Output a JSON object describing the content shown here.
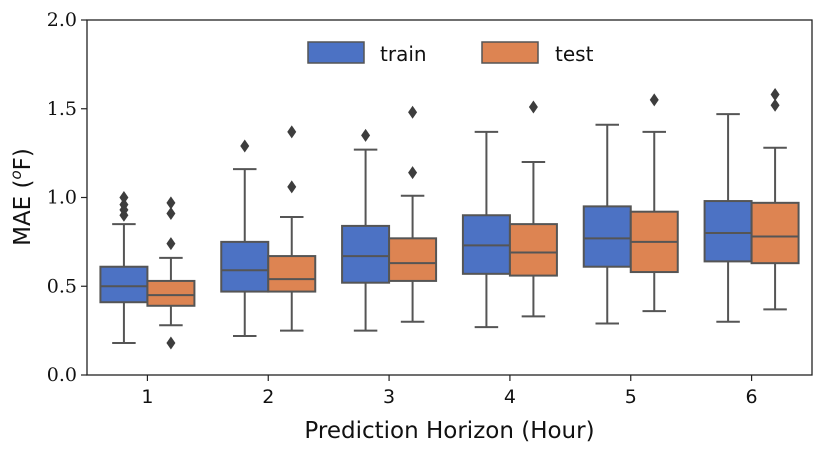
{
  "chart_data": {
    "type": "box",
    "title": "",
    "xlabel": "Prediction Horizon (Hour)",
    "ylabel": "MAE (°F)",
    "ylabel_main": "MAE (",
    "ylabel_sup": "o",
    "ylabel_unit": "F)",
    "ylim": [
      0,
      2.0
    ],
    "yticks": [
      "0.0",
      "0.5",
      "1.0",
      "1.5",
      "2.0"
    ],
    "categories": [
      "1",
      "2",
      "3",
      "4",
      "5",
      "6"
    ],
    "legend_position": "top-center",
    "series": [
      {
        "name": "train",
        "color": "#4c72c4",
        "boxes": [
          {
            "whisker_low": 0.18,
            "q1": 0.41,
            "median": 0.5,
            "q3": 0.61,
            "whisker_high": 0.85,
            "outliers": [
              0.9,
              0.93,
              0.96,
              1.0
            ]
          },
          {
            "whisker_low": 0.22,
            "q1": 0.47,
            "median": 0.59,
            "q3": 0.75,
            "whisker_high": 1.16,
            "outliers": [
              1.29
            ]
          },
          {
            "whisker_low": 0.25,
            "q1": 0.52,
            "median": 0.67,
            "q3": 0.84,
            "whisker_high": 1.27,
            "outliers": [
              1.35
            ]
          },
          {
            "whisker_low": 0.27,
            "q1": 0.57,
            "median": 0.73,
            "q3": 0.9,
            "whisker_high": 1.37,
            "outliers": []
          },
          {
            "whisker_low": 0.29,
            "q1": 0.61,
            "median": 0.77,
            "q3": 0.95,
            "whisker_high": 1.41,
            "outliers": []
          },
          {
            "whisker_low": 0.3,
            "q1": 0.64,
            "median": 0.8,
            "q3": 0.98,
            "whisker_high": 1.47,
            "outliers": []
          }
        ]
      },
      {
        "name": "test",
        "color": "#dd8452",
        "boxes": [
          {
            "whisker_low": 0.28,
            "q1": 0.39,
            "median": 0.45,
            "q3": 0.53,
            "whisker_high": 0.66,
            "outliers": [
              0.18,
              0.74,
              0.91,
              0.97
            ]
          },
          {
            "whisker_low": 0.25,
            "q1": 0.47,
            "median": 0.54,
            "q3": 0.67,
            "whisker_high": 0.89,
            "outliers": [
              1.06,
              1.37
            ]
          },
          {
            "whisker_low": 0.3,
            "q1": 0.53,
            "median": 0.63,
            "q3": 0.77,
            "whisker_high": 1.01,
            "outliers": [
              1.14,
              1.48
            ]
          },
          {
            "whisker_low": 0.33,
            "q1": 0.56,
            "median": 0.69,
            "q3": 0.85,
            "whisker_high": 1.2,
            "outliers": [
              1.51
            ]
          },
          {
            "whisker_low": 0.36,
            "q1": 0.58,
            "median": 0.75,
            "q3": 0.92,
            "whisker_high": 1.37,
            "outliers": [
              1.55
            ]
          },
          {
            "whisker_low": 0.37,
            "q1": 0.63,
            "median": 0.78,
            "q3": 0.97,
            "whisker_high": 1.28,
            "outliers": [
              1.52,
              1.58
            ]
          }
        ]
      }
    ]
  }
}
